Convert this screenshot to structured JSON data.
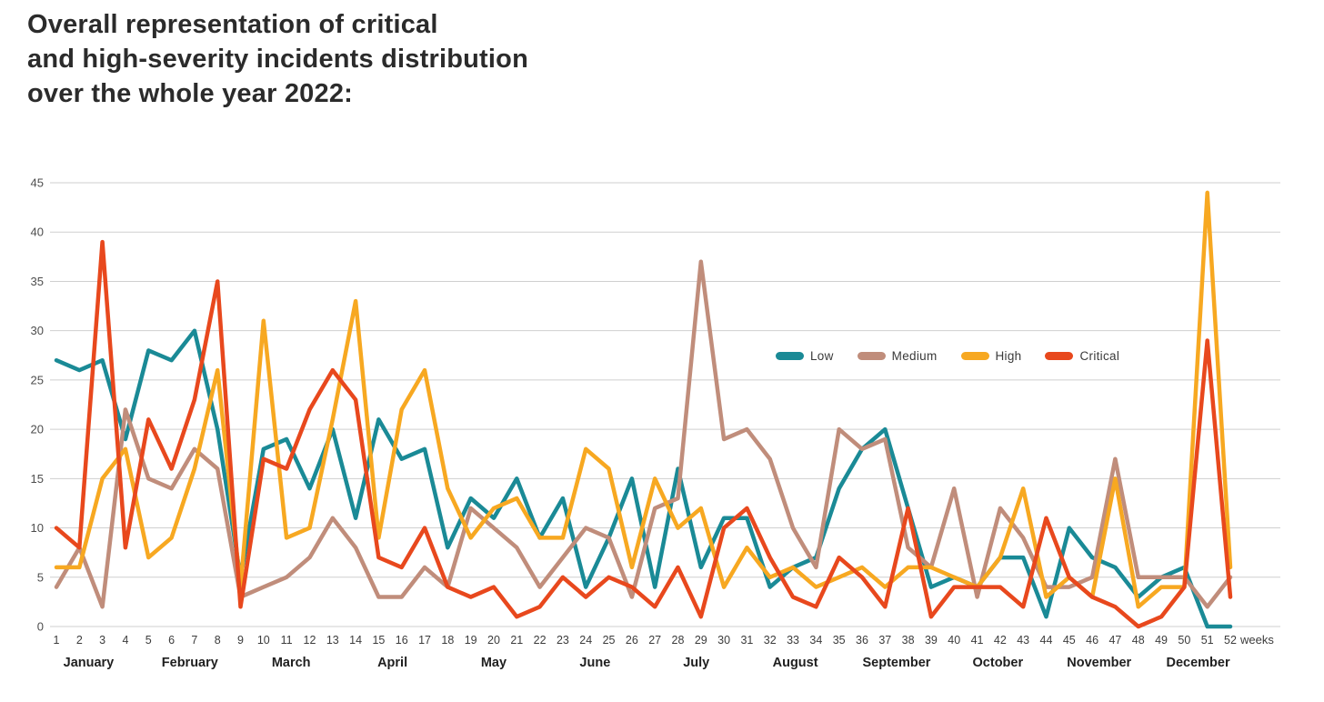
{
  "page": {
    "title_lines": [
      "Overall representation of critical",
      "and high-severity incidents distribution",
      "over the whole year 2022:"
    ]
  },
  "legend": {
    "items": [
      {
        "id": "low",
        "label": "Low",
        "color": "#1a8a96"
      },
      {
        "id": "medium",
        "label": "Medium",
        "color": "#c08d7b"
      },
      {
        "id": "high",
        "label": "High",
        "color": "#f7a821"
      },
      {
        "id": "critical",
        "label": "Critical",
        "color": "#e8481d"
      }
    ]
  },
  "chart_data": {
    "type": "line",
    "title": "Overall representation of critical and high-severity incidents distribution over the whole year 2022",
    "xlabel": "weeks",
    "ylabel": "",
    "ylim": [
      0,
      45
    ],
    "grid": true,
    "legend_position": "inside-right",
    "categories": [
      1,
      2,
      3,
      4,
      5,
      6,
      7,
      8,
      9,
      10,
      11,
      12,
      13,
      14,
      15,
      16,
      17,
      18,
      19,
      20,
      21,
      22,
      23,
      24,
      25,
      26,
      27,
      28,
      29,
      30,
      31,
      32,
      33,
      34,
      35,
      36,
      37,
      38,
      39,
      40,
      41,
      42,
      43,
      44,
      45,
      46,
      47,
      48,
      49,
      50,
      51,
      52
    ],
    "yticks": [
      0,
      5,
      10,
      15,
      20,
      25,
      30,
      35,
      40,
      45
    ],
    "months": [
      {
        "label": "January",
        "center_week": 2.4
      },
      {
        "label": "February",
        "center_week": 6.8
      },
      {
        "label": "March",
        "center_week": 11.2
      },
      {
        "label": "April",
        "center_week": 15.6
      },
      {
        "label": "May",
        "center_week": 20.0
      },
      {
        "label": "June",
        "center_week": 24.4
      },
      {
        "label": "July",
        "center_week": 28.8
      },
      {
        "label": "August",
        "center_week": 33.1
      },
      {
        "label": "September",
        "center_week": 37.5
      },
      {
        "label": "October",
        "center_week": 41.9
      },
      {
        "label": "November",
        "center_week": 46.3
      },
      {
        "label": "December",
        "center_week": 50.6
      }
    ],
    "series": [
      {
        "name": "Low",
        "color": "#1a8a96",
        "values": [
          27,
          26,
          27,
          19,
          28,
          27,
          30,
          20,
          5,
          18,
          19,
          14,
          20,
          11,
          21,
          17,
          18,
          8,
          13,
          11,
          15,
          9,
          13,
          4,
          9,
          15,
          4,
          16,
          6,
          11,
          11,
          4,
          6,
          7,
          14,
          18,
          20,
          12,
          4,
          5,
          4,
          7,
          7,
          1,
          10,
          7,
          6,
          3,
          5,
          6,
          0,
          0
        ]
      },
      {
        "name": "Medium",
        "color": "#c08d7b",
        "values": [
          4,
          8,
          2,
          22,
          15,
          14,
          18,
          16,
          3,
          4,
          5,
          7,
          11,
          8,
          3,
          3,
          6,
          4,
          12,
          10,
          8,
          4,
          7,
          10,
          9,
          3,
          12,
          13,
          37,
          19,
          20,
          17,
          10,
          6,
          20,
          18,
          19,
          8,
          6,
          14,
          3,
          12,
          9,
          4,
          4,
          5,
          17,
          5,
          5,
          5,
          2,
          5
        ]
      },
      {
        "name": "High",
        "color": "#f7a821",
        "values": [
          6,
          6,
          15,
          18,
          7,
          9,
          16,
          26,
          4,
          31,
          9,
          10,
          21,
          33,
          9,
          22,
          26,
          14,
          9,
          12,
          13,
          9,
          9,
          18,
          16,
          6,
          15,
          10,
          12,
          4,
          8,
          5,
          6,
          4,
          5,
          6,
          4,
          6,
          6,
          5,
          4,
          7,
          14,
          3,
          5,
          3,
          15,
          2,
          4,
          4,
          44,
          6
        ]
      },
      {
        "name": "Critical",
        "color": "#e8481d",
        "values": [
          10,
          8,
          39,
          8,
          21,
          16,
          23,
          35,
          2,
          17,
          16,
          22,
          26,
          23,
          7,
          6,
          10,
          4,
          3,
          4,
          1,
          2,
          5,
          3,
          5,
          4,
          2,
          6,
          1,
          10,
          12,
          7,
          3,
          2,
          7,
          5,
          2,
          12,
          1,
          4,
          4,
          4,
          2,
          11,
          5,
          3,
          2,
          0,
          1,
          4,
          29,
          3
        ]
      }
    ]
  }
}
